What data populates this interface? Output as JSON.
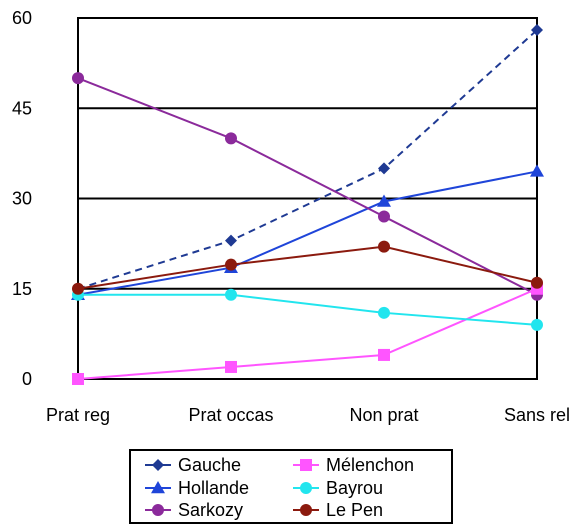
{
  "chart_data": {
    "type": "line",
    "categories": [
      "Prat reg",
      "Prat occas",
      "Non prat",
      "Sans rel"
    ],
    "ylim": [
      0,
      60
    ],
    "yticks": [
      0,
      15,
      30,
      45,
      60
    ],
    "ytick_labels": [
      "0",
      "15",
      "30",
      "45",
      "60"
    ],
    "grid": "horizontal",
    "legend_position": "bottom",
    "series": [
      {
        "name": "Gauche",
        "values": [
          15,
          23,
          35,
          58
        ],
        "color": "#1F3A93",
        "marker": "diamond",
        "dashed": true
      },
      {
        "name": "Hollande",
        "values": [
          14,
          18.5,
          29.5,
          34.5
        ],
        "color": "#1F45D9",
        "marker": "triangle",
        "dashed": false
      },
      {
        "name": "Sarkozy",
        "values": [
          50,
          40,
          27,
          14
        ],
        "color": "#8B2A9B",
        "marker": "circle",
        "dashed": false
      },
      {
        "name": "Mélenchon",
        "values": [
          0,
          2,
          4,
          15
        ],
        "color": "#FF55FF",
        "marker": "square",
        "dashed": false
      },
      {
        "name": "Bayrou",
        "values": [
          14,
          14,
          11,
          9
        ],
        "color": "#22E5EE",
        "marker": "circle",
        "dashed": false
      },
      {
        "name": "Le Pen",
        "values": [
          15,
          19,
          22,
          16
        ],
        "color": "#8B1A0E",
        "marker": "circle",
        "dashed": false
      }
    ]
  }
}
